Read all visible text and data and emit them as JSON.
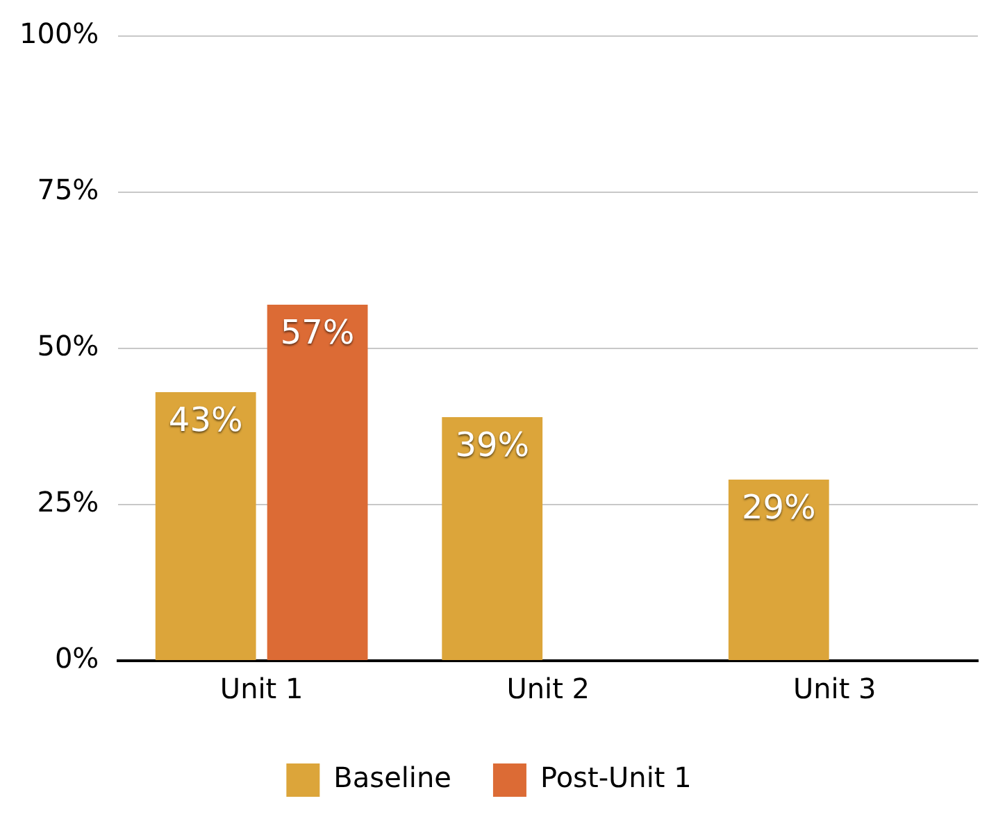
{
  "chart_data": {
    "type": "bar",
    "categories": [
      "Unit 1",
      "Unit 2",
      "Unit 3"
    ],
    "series": [
      {
        "name": "Baseline",
        "color": "#dca53a",
        "values": [
          43,
          39,
          29
        ],
        "value_labels": [
          "43%",
          "39%",
          "29%"
        ]
      },
      {
        "name": "Post-Unit 1",
        "color": "#dc6b35",
        "values": [
          57,
          null,
          null
        ],
        "value_labels": [
          "57%",
          null,
          null
        ]
      }
    ],
    "ylim": [
      0,
      100
    ],
    "yticks": [
      {
        "value": 0,
        "label": "0%"
      },
      {
        "value": 25,
        "label": "25%"
      },
      {
        "value": 50,
        "label": "50%"
      },
      {
        "value": 75,
        "label": "75%"
      },
      {
        "value": 100,
        "label": "100%"
      }
    ],
    "grid": "y",
    "legend": "bottom"
  }
}
